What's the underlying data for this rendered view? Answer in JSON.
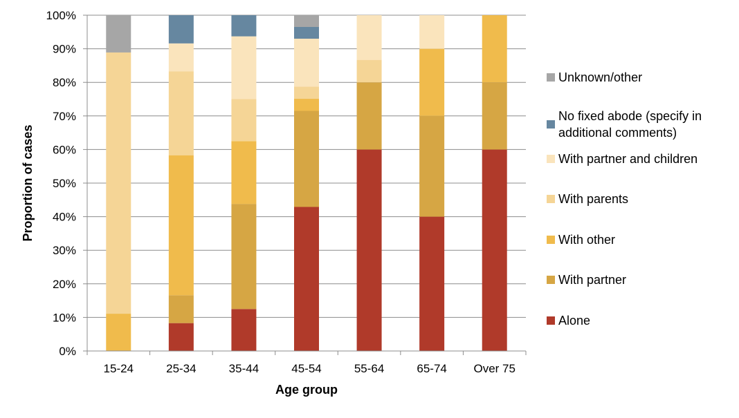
{
  "chart_data": {
    "type": "bar",
    "stacked": true,
    "percent": true,
    "title": "",
    "xlabel": "Age group",
    "ylabel": "Proportion of cases",
    "ylim": [
      0,
      100
    ],
    "y_ticks": [
      "0%",
      "10%",
      "20%",
      "30%",
      "40%",
      "50%",
      "60%",
      "70%",
      "80%",
      "90%",
      "100%"
    ],
    "grid": true,
    "legend_position": "right",
    "categories": [
      "15-24",
      "25-34",
      "35-44",
      "45-54",
      "55-64",
      "65-74",
      "Over 75"
    ],
    "series": [
      {
        "name": "Alone",
        "color": "#b03a2a",
        "values": [
          0,
          8.3,
          12.5,
          42.9,
          60,
          40,
          60
        ]
      },
      {
        "name": "With partner",
        "color": "#d6a644",
        "values": [
          0,
          8.3,
          31.3,
          28.6,
          20,
          30,
          20
        ]
      },
      {
        "name": "With other",
        "color": "#f0bb4c",
        "values": [
          11.1,
          41.7,
          18.7,
          3.6,
          0,
          20,
          20
        ]
      },
      {
        "name": "With parents",
        "color": "#f5d596",
        "values": [
          77.8,
          25,
          12.5,
          3.6,
          6.7,
          0,
          0
        ]
      },
      {
        "name": "With  partner and children",
        "color": "#fae4bc",
        "values": [
          0,
          8.3,
          18.7,
          14.3,
          13.3,
          10,
          0
        ]
      },
      {
        "name": "No fixed abode (specify in additional comments)",
        "color": "#6687a0",
        "values": [
          0,
          8.4,
          6.3,
          3.5,
          0,
          0,
          0
        ]
      },
      {
        "name": "Unknown/other",
        "color": "#a6a6a6",
        "values": [
          11.1,
          0,
          0,
          3.5,
          0,
          0,
          0
        ]
      }
    ],
    "legend": [
      {
        "lines": [
          "Unknown/other"
        ],
        "color": "#a6a6a6"
      },
      {
        "lines": [
          "No fixed abode (specify in",
          "additional comments)"
        ],
        "color": "#6687a0"
      },
      {
        "lines": [
          "With  partner and children"
        ],
        "color": "#fae4bc"
      },
      {
        "lines": [
          "With parents"
        ],
        "color": "#f5d596"
      },
      {
        "lines": [
          "With other"
        ],
        "color": "#f0bb4c"
      },
      {
        "lines": [
          "With partner"
        ],
        "color": "#d6a644"
      },
      {
        "lines": [
          "Alone"
        ],
        "color": "#b03a2a"
      }
    ]
  }
}
